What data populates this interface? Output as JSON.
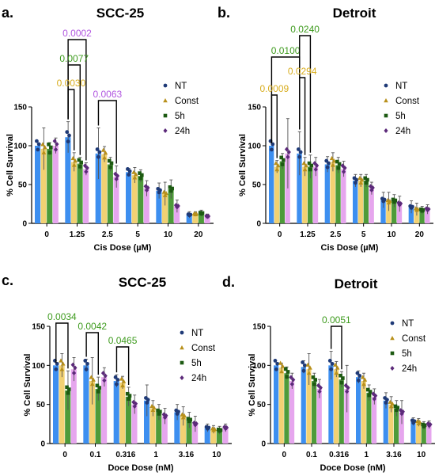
{
  "series_colors": {
    "NT": "#3d8ff0",
    "Const": "#f2d173",
    "5h": "#4e9b3a",
    "24h": "#e6a6ee"
  },
  "marker_colors": {
    "NT": "#1f3a77",
    "Const": "#b8901b",
    "5h": "#1d5a12",
    "24h": "#5c2a7a"
  },
  "chart_data": [
    {
      "type": "bar",
      "panel_label": "a.",
      "title": "SCC-25",
      "xlabel": "Cis Dose (µM)",
      "ylabel": "% Cell Survival",
      "categories": [
        "0",
        "1.25",
        "2.5",
        "5",
        "10",
        "20"
      ],
      "ylim": [
        0,
        150
      ],
      "yticks": [
        0,
        50,
        100,
        150
      ],
      "legend": "right",
      "series": [
        {
          "name": "NT",
          "values": [
            100,
            111,
            90,
            66,
            42,
            11
          ],
          "errors": [
            0,
            20,
            33,
            5,
            10,
            4
          ]
        },
        {
          "name": "Const",
          "values": [
            96,
            79,
            89,
            62,
            38,
            12
          ],
          "errors": [
            27,
            12,
            10,
            10,
            15,
            3
          ]
        },
        {
          "name": "5h",
          "values": [
            96,
            77,
            76,
            61,
            44,
            13
          ],
          "errors": [
            8,
            8,
            9,
            8,
            12,
            4
          ]
        },
        {
          "name": "24h",
          "values": [
            100,
            70,
            60,
            45,
            22,
            9
          ],
          "errors": [
            10,
            8,
            14,
            10,
            8,
            3
          ]
        }
      ],
      "comparisons": [
        {
          "p": "0.0002",
          "color": "#b157e0",
          "from": {
            "category": "1.25",
            "series": "NT"
          },
          "to": {
            "category": "1.25",
            "series": "24h"
          }
        },
        {
          "p": "0.0077",
          "color": "#3e9b1e",
          "from": {
            "category": "1.25",
            "series": "NT"
          },
          "to": {
            "category": "1.25",
            "series": "5h"
          }
        },
        {
          "p": "0.0030",
          "color": "#d8ad1e",
          "from": {
            "category": "1.25",
            "series": "NT"
          },
          "to": {
            "category": "1.25",
            "series": "Const"
          }
        },
        {
          "p": "0.0063",
          "color": "#b157e0",
          "from": {
            "category": "2.5",
            "series": "NT"
          },
          "to": {
            "category": "2.5",
            "series": "24h"
          }
        }
      ]
    },
    {
      "type": "bar",
      "panel_label": "b.",
      "title": "Detroit",
      "xlabel": "Cis Dose (µM)",
      "ylabel": "% Cell Survival",
      "categories": [
        "0",
        "1.25",
        "2.5",
        "5",
        "10",
        "20"
      ],
      "ylim": [
        0,
        150
      ],
      "yticks": [
        0,
        50,
        100,
        150
      ],
      "legend": "right",
      "series": [
        {
          "name": "NT",
          "values": [
            100,
            90,
            76,
            55,
            30,
            21
          ],
          "errors": [
            0,
            28,
            10,
            8,
            10,
            8
          ]
        },
        {
          "name": "Const",
          "values": [
            73,
            73,
            79,
            55,
            28,
            18
          ],
          "errors": [
            8,
            12,
            12,
            8,
            12,
            8
          ]
        },
        {
          "name": "5h",
          "values": [
            80,
            73,
            75,
            55,
            29,
            17
          ],
          "errors": [
            10,
            15,
            10,
            8,
            8,
            5
          ]
        },
        {
          "name": "24h",
          "values": [
            90,
            73,
            70,
            45,
            25,
            18
          ],
          "errors": [
            45,
            12,
            10,
            8,
            10,
            6
          ]
        }
      ],
      "comparisons": [
        {
          "p": "0.0100",
          "color": "#3e9b1e",
          "from": {
            "category": "0",
            "series": "NT"
          },
          "to": {
            "category": "1.25",
            "series": "NT"
          }
        },
        {
          "p": "0.0240",
          "color": "#3e9b1e",
          "from": {
            "category": "1.25",
            "series": "NT"
          },
          "to": {
            "category": "1.25",
            "series": "5h"
          }
        },
        {
          "p": "0.0009",
          "color": "#d8ad1e",
          "from": {
            "category": "0",
            "series": "NT"
          },
          "to": {
            "category": "0",
            "series": "Const"
          }
        },
        {
          "p": "0.0294",
          "color": "#d8ad1e",
          "from": {
            "category": "1.25",
            "series": "NT"
          },
          "to": {
            "category": "1.25",
            "series": "Const"
          }
        }
      ]
    },
    {
      "type": "bar",
      "panel_label": "c.",
      "title": "SCC-25",
      "xlabel": "Doce Dose (nM)",
      "ylabel": "% Cell Survival",
      "categories": [
        "0",
        "0.1",
        "0.316",
        "1",
        "3.16",
        "10"
      ],
      "ylim": [
        0,
        150
      ],
      "yticks": [
        0,
        50,
        100,
        150
      ],
      "legend": "right",
      "series": [
        {
          "name": "NT",
          "values": [
            100,
            100,
            80,
            55,
            40,
            20
          ],
          "errors": [
            0,
            8,
            8,
            20,
            10,
            5
          ]
        },
        {
          "name": "Const",
          "values": [
            100,
            80,
            78,
            45,
            35,
            18
          ],
          "errors": [
            15,
            30,
            8,
            10,
            12,
            5
          ]
        },
        {
          "name": "5h",
          "values": [
            68,
            70,
            60,
            40,
            30,
            17
          ],
          "errors": [
            25,
            15,
            12,
            10,
            10,
            5
          ]
        },
        {
          "name": "24h",
          "values": [
            95,
            85,
            50,
            35,
            25,
            20
          ],
          "errors": [
            15,
            12,
            12,
            10,
            10,
            5
          ]
        }
      ],
      "comparisons": [
        {
          "p": "0.0034",
          "color": "#3e9b1e",
          "from": {
            "category": "0",
            "series": "NT"
          },
          "to": {
            "category": "0",
            "series": "5h"
          }
        },
        {
          "p": "0.0042",
          "color": "#3e9b1e",
          "from": {
            "category": "0.1",
            "series": "NT"
          },
          "to": {
            "category": "0.1",
            "series": "5h"
          }
        },
        {
          "p": "0.0465",
          "color": "#3e9b1e",
          "from": {
            "category": "0.316",
            "series": "NT"
          },
          "to": {
            "category": "0.316",
            "series": "5h"
          }
        }
      ]
    },
    {
      "type": "bar",
      "panel_label": "d.",
      "title": "Detroit",
      "xlabel": "Doce Dose (nM)",
      "ylabel": "% Cell Survival",
      "categories": [
        "0",
        "0.1",
        "0.316",
        "1",
        "3.16",
        "10"
      ],
      "ylim": [
        0,
        150
      ],
      "yticks": [
        0,
        50,
        100,
        150
      ],
      "legend": "right",
      "series": [
        {
          "name": "NT",
          "values": [
            100,
            98,
            100,
            85,
            55,
            28
          ],
          "errors": [
            0,
            8,
            18,
            8,
            10,
            5
          ]
        },
        {
          "name": "Const",
          "values": [
            97,
            95,
            95,
            80,
            50,
            27
          ],
          "errors": [
            6,
            20,
            10,
            10,
            10,
            5
          ]
        },
        {
          "name": "5h",
          "values": [
            90,
            80,
            82,
            65,
            45,
            23
          ],
          "errors": [
            8,
            10,
            10,
            10,
            10,
            5
          ]
        },
        {
          "name": "24h",
          "values": [
            80,
            70,
            70,
            60,
            40,
            24
          ],
          "errors": [
            10,
            12,
            30,
            10,
            15,
            5
          ]
        }
      ],
      "comparisons": [
        {
          "p": "0.0051",
          "color": "#3e9b1e",
          "from": {
            "category": "0.316",
            "series": "NT"
          },
          "to": {
            "category": "0.316",
            "series": "5h"
          }
        }
      ]
    }
  ]
}
